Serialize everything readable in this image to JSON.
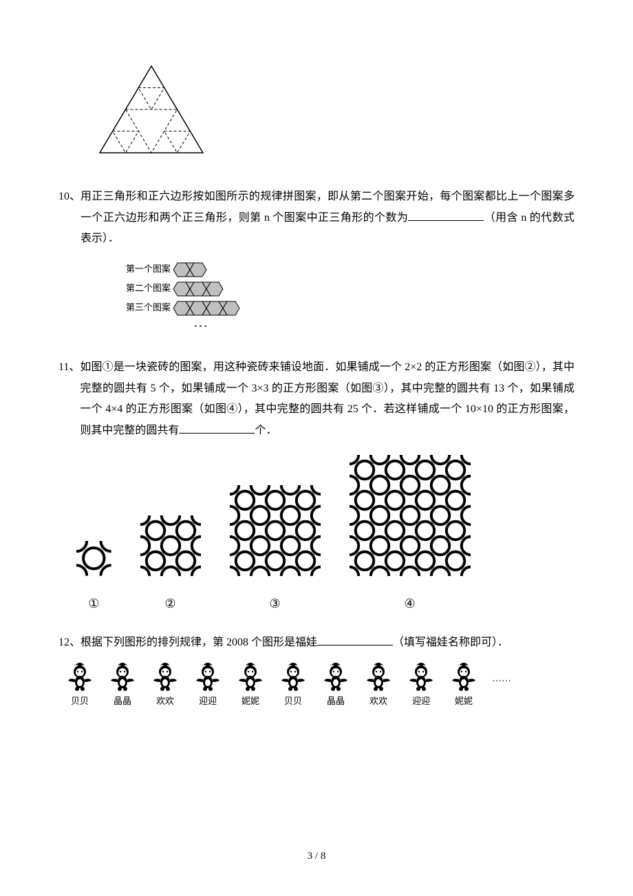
{
  "q10": {
    "num": "10、",
    "text": "用正三角形和正六边形按如图所示的规律拼图案，即从第二个图案开始，每个图案都比上一个图案多一个正六边形和两个正三角形，则第 n 个图案中正三角形的个数为",
    "tail": "（用含 n 的代数式表示）．",
    "rows": [
      "第一个图案",
      "第二个图案",
      "第三个图案"
    ],
    "hexCounts": [
      2,
      3,
      4
    ],
    "hexFill": "#bfbfbf",
    "triStroke": "#000000"
  },
  "q11": {
    "num": "11、",
    "text": "如图①是一块瓷砖的图案，用这种瓷砖来铺设地面．如果铺成一个 2×2 的正方形图案（如图②），其中完整的圆共有 5 个，如果铺成一个 3×3 的正方形图案（如图③），其中完整的圆共有 13 个，如果铺成一个 4×4 的正方形图案（如图④），其中完整的圆共有 25 个．若这样铺成一个 10×10 的正方形图案，则其中完整的圆共有",
    "tail": "个．",
    "labels": [
      "①",
      "②",
      "③",
      "④"
    ],
    "grids": [
      1,
      2,
      3,
      4
    ],
    "cellSize": 44,
    "stroke": "#000000",
    "strokeWidth": 4
  },
  "q12": {
    "num": "12、",
    "text": "根据下列图形的排列规律，第 2008 个图形是福娃",
    "tail": "（填写福娃名称即可）．",
    "names": [
      "贝贝",
      "晶晶",
      "欢欢",
      "迎迎",
      "妮妮",
      "贝贝",
      "晶晶",
      "欢欢",
      "迎迎",
      "妮妮"
    ],
    "ellipsis": "……"
  },
  "footer": "3 / 8"
}
